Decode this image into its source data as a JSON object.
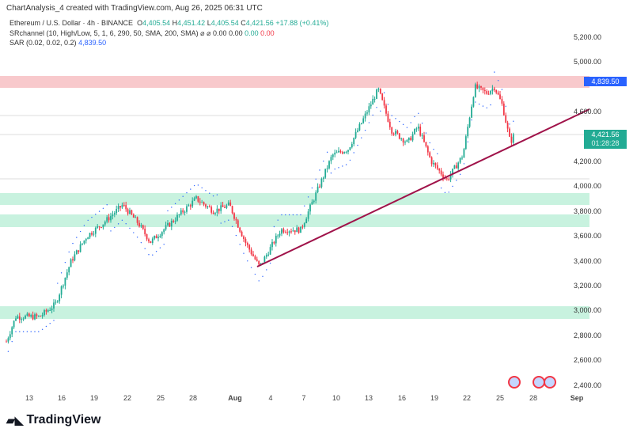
{
  "title": "ChartAnalysis_4 created with TradingView.com, Aug 26, 2025 06:31 UTC",
  "legend": {
    "symbol": "Ethereum / U.S. Dollar · 4h · BINANCE",
    "o_label": "O",
    "o": "4,405.54",
    "h_label": "H",
    "h": "4,451.42",
    "l_label": "L",
    "l": "4,405.54",
    "c_label": "C",
    "c": "4,421.56",
    "change": "+17.88 (+0.41%)",
    "sr": "SRchannel (10, High/Low, 5, 1, 6, 290, 50, SMA, 200, SMA)",
    "sr_icons": "⌀ ⌀",
    "sr_v1": "0.00",
    "sr_v2": "0.00",
    "sr_v3": "0.00",
    "sr_v4": "0.00",
    "sar": "SAR (0.02, 0.02, 0.2)",
    "sar_v": "4,839.50"
  },
  "price_axis": [
    "5,200.00",
    "5,000.00",
    "4,600.00",
    "4,200.00",
    "4,000.00",
    "3,800.00",
    "3,600.00",
    "3,400.00",
    "3,200.00",
    "3,000.00",
    "2,800.00",
    "2,600.00",
    "2,400.00"
  ],
  "time_axis": [
    "13",
    "16",
    "19",
    "22",
    "25",
    "28",
    "Aug",
    "4",
    "7",
    "10",
    "13",
    "16",
    "19",
    "22",
    "25",
    "28",
    "Sep"
  ],
  "sar_badge": "4,839.50",
  "price_badge": {
    "price": "4,421.56",
    "countdown": "01:28:28"
  },
  "colors": {
    "up": "#22ab94",
    "down": "#f23645",
    "resistance": "#f8c9cc",
    "support": "#c8f2df",
    "trendline": "#a0134a",
    "sar_badge": "#2962ff"
  },
  "logo": "TradingView"
}
